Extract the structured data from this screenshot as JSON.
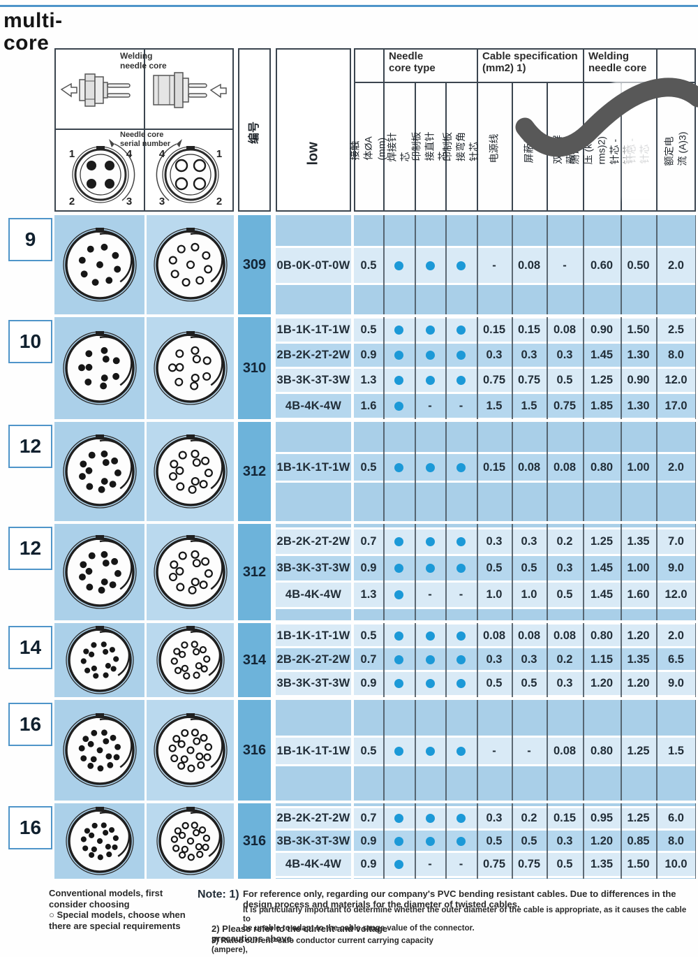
{
  "page": {
    "title": "multi-\ncore"
  },
  "header": {
    "diagram": {
      "welding_label": "Welding\nneedle core",
      "serial_label": "Needle core\nserial number",
      "left_pin_numbers": [
        "1",
        "4",
        "2",
        "3"
      ],
      "right_pin_numbers": [
        "4",
        "1",
        "3",
        "2"
      ]
    },
    "number_col_label": "编号",
    "model_col_label": "low",
    "groups": [
      "Needle\ncore type",
      "Cable specification\n(mm2) 1)",
      "Welding\nneedle core"
    ],
    "columns": [
      "接触体ØA (mm)",
      "焊接针芯",
      "印制板接直针芯",
      "印制板接弯角针芯",
      "电源线",
      "屏蔽线",
      "双绞屏蔽线",
      "测试电压 (kV rms)2)\n针芯 - 针芯",
      "针芯 - 针芯",
      "额定电流 (A)3)"
    ]
  },
  "sections": [
    {
      "core_count": "9",
      "model_no": "309",
      "rows": [
        {
          "name": "0B-0K-0T-0W",
          "values": [
            "0.5",
            "dot",
            "dot",
            "dot",
            "-",
            "0.08",
            "-",
            "0.60",
            "0.50",
            "2.0"
          ]
        }
      ]
    },
    {
      "core_count": "10",
      "model_no": "310",
      "rows": [
        {
          "name": "1B-1K-1T-1W",
          "values": [
            "0.5",
            "dot",
            "dot",
            "dot",
            "0.15",
            "0.15",
            "0.08",
            "0.90",
            "1.50",
            "2.5"
          ]
        },
        {
          "name": "2B-2K-2T-2W",
          "values": [
            "0.9",
            "dot",
            "dot",
            "dot",
            "0.3",
            "0.3",
            "0.3",
            "1.45",
            "1.30",
            "8.0"
          ]
        },
        {
          "name": "3B-3K-3T-3W",
          "values": [
            "1.3",
            "dot",
            "dot",
            "dot",
            "0.75",
            "0.75",
            "0.5",
            "1.25",
            "0.90",
            "12.0"
          ]
        },
        {
          "name": "4B-4K-4W",
          "values": [
            "1.6",
            "dot",
            "-",
            "-",
            "1.5",
            "1.5",
            "0.75",
            "1.85",
            "1.30",
            "17.0"
          ]
        }
      ]
    },
    {
      "core_count": "12",
      "model_no": "312",
      "rows": [
        {
          "name": "1B-1K-1T-1W",
          "values": [
            "0.5",
            "dot",
            "dot",
            "dot",
            "0.15",
            "0.08",
            "0.08",
            "0.80",
            "1.00",
            "2.0"
          ]
        }
      ]
    },
    {
      "core_count": "12",
      "model_no": "312",
      "rows": [
        {
          "name": "2B-2K-2T-2W",
          "values": [
            "0.7",
            "dot",
            "dot",
            "dot",
            "0.3",
            "0.3",
            "0.2",
            "1.25",
            "1.35",
            "7.0"
          ]
        },
        {
          "name": "3B-3K-3T-3W",
          "values": [
            "0.9",
            "dot",
            "dot",
            "dot",
            "0.5",
            "0.5",
            "0.3",
            "1.45",
            "1.00",
            "9.0"
          ]
        },
        {
          "name": "4B-4K-4W",
          "values": [
            "1.3",
            "dot",
            "-",
            "-",
            "1.0",
            "1.0",
            "0.5",
            "1.45",
            "1.60",
            "12.0"
          ]
        }
      ]
    },
    {
      "core_count": "14",
      "model_no": "314",
      "rows": [
        {
          "name": "1B-1K-1T-1W",
          "values": [
            "0.5",
            "dot",
            "dot",
            "dot",
            "0.08",
            "0.08",
            "0.08",
            "0.80",
            "1.20",
            "2.0"
          ]
        },
        {
          "name": "2B-2K-2T-2W",
          "values": [
            "0.7",
            "dot",
            "dot",
            "dot",
            "0.3",
            "0.3",
            "0.2",
            "1.15",
            "1.35",
            "6.5"
          ]
        },
        {
          "name": "3B-3K-3T-3W",
          "values": [
            "0.9",
            "dot",
            "dot",
            "dot",
            "0.5",
            "0.5",
            "0.3",
            "1.20",
            "1.20",
            "9.0"
          ]
        }
      ]
    },
    {
      "core_count": "16",
      "model_no": "316",
      "rows": [
        {
          "name": "1B-1K-1T-1W",
          "values": [
            "0.5",
            "dot",
            "dot",
            "dot",
            "-",
            "-",
            "0.08",
            "0.80",
            "1.25",
            "1.5"
          ]
        }
      ]
    },
    {
      "core_count": "16",
      "model_no": "316",
      "rows": [
        {
          "name": "2B-2K-2T-2W",
          "values": [
            "0.7",
            "dot",
            "dot",
            "dot",
            "0.3",
            "0.2",
            "0.15",
            "0.95",
            "1.25",
            "6.0"
          ]
        },
        {
          "name": "3B-3K-3T-3W",
          "values": [
            "0.9",
            "dot",
            "dot",
            "dot",
            "0.5",
            "0.5",
            "0.3",
            "1.20",
            "0.85",
            "8.0"
          ]
        },
        {
          "name": "4B-4K-4W",
          "values": [
            "0.9",
            "dot",
            "-",
            "-",
            "0.75",
            "0.75",
            "0.5",
            "1.35",
            "1.50",
            "10.0"
          ]
        }
      ]
    }
  ],
  "footer": {
    "left": [
      "Conventional models, first",
      "consider choosing",
      "○ Special models, choose when",
      "there are special requirements"
    ],
    "note_label": "Note: 1)",
    "note1_bold": "For reference only, regarding our company's PVC bending resistant cables. Due to differences in the\ndesign process and materials for the diameter of twisted cables.",
    "note1_small": "It is particularly important to determine whether the outer diameter of the cable is appropriate, as it causes the cable to\nbe unable to adapt to the cable range value of the connector.",
    "note2": "2) Please refer to the current and voltage\nprecautions above.",
    "note3": "3) Rated current=safe conductor current carrying capacity\n(ampere),"
  }
}
